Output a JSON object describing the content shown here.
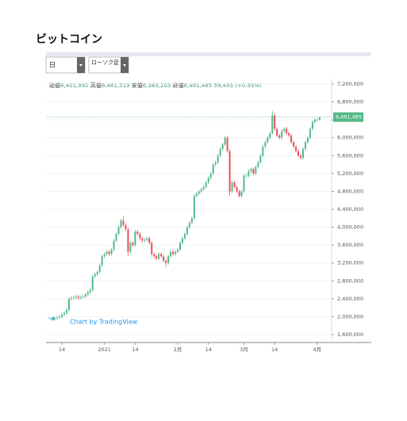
{
  "page_title": "ビットコイン",
  "toolbar": {
    "interval": "日",
    "chart_style": "ローソク足"
  },
  "info": {
    "open_label": "始値",
    "open": "6,401,992",
    "high_label": "高値",
    "high": "6,461,519",
    "low_label": "安値",
    "low": "6,383,203",
    "close_label": "終値",
    "close": "6,461,485",
    "change": "59,493 (+0.93%)"
  },
  "watermark": "Chart by TradingView",
  "chart_data": {
    "type": "candlestick",
    "categories": [
      null,
      null,
      null,
      null,
      "14",
      null,
      null,
      null,
      null,
      null,
      null,
      null,
      null,
      null,
      null,
      null,
      null,
      null,
      null,
      null,
      null,
      null,
      "2021",
      null,
      null,
      null,
      null,
      null,
      null,
      null,
      null,
      null,
      null,
      null,
      null,
      "14",
      null,
      null,
      null,
      null,
      null,
      null,
      null,
      null,
      null,
      null,
      null,
      null,
      null,
      null,
      null,
      null,
      null,
      "2月",
      null,
      null,
      null,
      null,
      null,
      null,
      null,
      null,
      null,
      null,
      null,
      null,
      "14",
      null,
      null,
      null,
      null,
      null,
      null,
      null,
      null,
      null,
      null,
      null,
      null,
      null,
      null,
      "3月",
      null,
      null,
      null,
      null,
      null,
      null,
      null,
      null,
      null,
      null,
      null,
      null,
      "14",
      null,
      null,
      null,
      null,
      null,
      null,
      null,
      null,
      null,
      null,
      null,
      null,
      null,
      null,
      null,
      null,
      null,
      "4月",
      null
    ],
    "open": [
      1930000,
      1950000,
      1960000,
      1980000,
      2000000,
      2050000,
      2080000,
      2150000,
      2400000,
      2420000,
      2430000,
      2450000,
      2420000,
      2440000,
      2450000,
      2500000,
      2550000,
      2600000,
      2900000,
      2950000,
      3000000,
      3150000,
      3350000,
      3400000,
      3450000,
      3400000,
      3500000,
      3700000,
      3850000,
      4000000,
      4150000,
      4050000,
      3950000,
      3450000,
      3650000,
      3600000,
      3900000,
      3850000,
      3750000,
      3700000,
      3720000,
      3750000,
      3650000,
      3400000,
      3350000,
      3300000,
      3400000,
      3350000,
      3250000,
      3200000,
      3350000,
      3450000,
      3400000,
      3450000,
      3500000,
      3650000,
      3750000,
      3850000,
      4000000,
      4100000,
      4200000,
      4700000,
      4750000,
      4800000,
      4850000,
      4900000,
      5000000,
      5100000,
      5200000,
      5400000,
      5450000,
      5600000,
      5750000,
      5850000,
      6000000,
      5700000,
      4800000,
      5000000,
      4900000,
      4800000,
      4700000,
      4800000,
      5150000,
      5150000,
      5250000,
      5300000,
      5200000,
      5350000,
      5450000,
      5600000,
      5800000,
      5900000,
      6000000,
      6100000,
      6500000,
      6200000,
      6050000,
      6000000,
      6150000,
      6200000,
      6100000,
      6050000,
      5900000,
      5800000,
      5700000,
      5600000,
      5550000,
      5750000,
      5900000,
      6000000,
      6200000,
      6350000,
      6400000,
      6401992
    ],
    "high": [
      1990000,
      2000000,
      2020000,
      2040000,
      2090000,
      2120000,
      2190000,
      2440000,
      2460000,
      2470000,
      2490000,
      2490000,
      2480000,
      2490000,
      2540000,
      2590000,
      2640000,
      2940000,
      2990000,
      3040000,
      3190000,
      3390000,
      3440000,
      3490000,
      3490000,
      3540000,
      3740000,
      3890000,
      4040000,
      4190000,
      4250000,
      4090000,
      3990000,
      3690000,
      3690000,
      3940000,
      3940000,
      3890000,
      3790000,
      3760000,
      3790000,
      3790000,
      3690000,
      3440000,
      3390000,
      3440000,
      3440000,
      3390000,
      3290000,
      3390000,
      3490000,
      3490000,
      3490000,
      3540000,
      3690000,
      3790000,
      3890000,
      4040000,
      4140000,
      4240000,
      4740000,
      4790000,
      4840000,
      4890000,
      4940000,
      5040000,
      5140000,
      5240000,
      5440000,
      5490000,
      5640000,
      5790000,
      5890000,
      6040000,
      6040000,
      5740000,
      5040000,
      5040000,
      4940000,
      4840000,
      4840000,
      5190000,
      5190000,
      5290000,
      5340000,
      5340000,
      5390000,
      5490000,
      5640000,
      5840000,
      5940000,
      6040000,
      6140000,
      6600000,
      6540000,
      6240000,
      6090000,
      6190000,
      6240000,
      6240000,
      6140000,
      6090000,
      5940000,
      5840000,
      5740000,
      5640000,
      5790000,
      5940000,
      6040000,
      6240000,
      6390000,
      6440000,
      6440000,
      6461519
    ],
    "low": [
      1890000,
      1910000,
      1920000,
      1940000,
      1960000,
      2010000,
      2040000,
      2110000,
      2360000,
      2380000,
      2390000,
      2380000,
      2380000,
      2400000,
      2410000,
      2460000,
      2510000,
      2560000,
      2860000,
      2910000,
      2960000,
      3110000,
      3310000,
      3360000,
      3360000,
      3360000,
      3460000,
      3660000,
      3810000,
      3960000,
      4010000,
      3910000,
      3350000,
      3410000,
      3560000,
      3560000,
      3810000,
      3710000,
      3660000,
      3660000,
      3680000,
      3610000,
      3360000,
      3310000,
      3260000,
      3260000,
      3310000,
      3210000,
      3100000,
      3160000,
      3310000,
      3360000,
      3360000,
      3410000,
      3460000,
      3610000,
      3710000,
      3810000,
      3960000,
      4060000,
      4160000,
      4660000,
      4710000,
      4760000,
      4810000,
      4860000,
      4960000,
      5060000,
      5160000,
      5360000,
      5410000,
      5560000,
      5710000,
      5810000,
      5660000,
      4700000,
      4760000,
      4860000,
      4760000,
      4660000,
      4660000,
      4760000,
      5110000,
      5110000,
      5210000,
      5160000,
      5160000,
      5310000,
      5410000,
      5560000,
      5760000,
      5860000,
      5960000,
      6060000,
      6160000,
      6010000,
      5960000,
      5960000,
      6110000,
      6060000,
      6010000,
      5860000,
      5760000,
      5660000,
      5560000,
      5510000,
      5510000,
      5710000,
      5860000,
      5960000,
      6160000,
      6310000,
      6360000,
      6383203
    ],
    "close": [
      1950000,
      1960000,
      1980000,
      2000000,
      2050000,
      2080000,
      2150000,
      2400000,
      2420000,
      2430000,
      2450000,
      2420000,
      2440000,
      2450000,
      2500000,
      2550000,
      2600000,
      2900000,
      2950000,
      3000000,
      3150000,
      3350000,
      3400000,
      3450000,
      3400000,
      3500000,
      3700000,
      3850000,
      4000000,
      4150000,
      4050000,
      3950000,
      3450000,
      3650000,
      3600000,
      3900000,
      3850000,
      3750000,
      3700000,
      3720000,
      3750000,
      3650000,
      3400000,
      3350000,
      3300000,
      3400000,
      3350000,
      3250000,
      3200000,
      3350000,
      3450000,
      3400000,
      3450000,
      3500000,
      3650000,
      3750000,
      3850000,
      4000000,
      4100000,
      4200000,
      4700000,
      4750000,
      4800000,
      4850000,
      4900000,
      5000000,
      5100000,
      5200000,
      5400000,
      5450000,
      5600000,
      5750000,
      5850000,
      6000000,
      5700000,
      4800000,
      5000000,
      4900000,
      4800000,
      4700000,
      4800000,
      5150000,
      5150000,
      5250000,
      5300000,
      5200000,
      5350000,
      5450000,
      5600000,
      5800000,
      5900000,
      6000000,
      6100000,
      6500000,
      6200000,
      6050000,
      6000000,
      6150000,
      6200000,
      6100000,
      6050000,
      5900000,
      5800000,
      5700000,
      5600000,
      5550000,
      5750000,
      5900000,
      6000000,
      6200000,
      6350000,
      6400000,
      6401992,
      6461485
    ],
    "up_color": "#53b987",
    "down_color": "#eb4d5c",
    "last_price": {
      "value": 6461485,
      "label": "6,461,485"
    },
    "ylim": [
      1422300,
      7306300
    ],
    "yticks": [
      {
        "value": 1600000,
        "label": "1,600,000"
      },
      {
        "value": 2000000,
        "label": "2,000,000"
      },
      {
        "value": 2400000,
        "label": "2,400,000"
      },
      {
        "value": 2800000,
        "label": "2,800,000"
      },
      {
        "value": 3200000,
        "label": "3,200,000"
      },
      {
        "value": 3600000,
        "label": "3,600,000"
      },
      {
        "value": 4000000,
        "label": "4,000,000"
      },
      {
        "value": 4400000,
        "label": "4,400,000"
      },
      {
        "value": 4800000,
        "label": "4,800,000"
      },
      {
        "value": 5200000,
        "label": "5,200,000"
      },
      {
        "value": 5600000,
        "label": "5,600,000"
      },
      {
        "value": 6000000,
        "label": "6,000,000"
      },
      {
        "value": 6400000,
        "label": "6,400,000"
      },
      {
        "value": 6800000,
        "label": "6,800,000"
      },
      {
        "value": 7200000,
        "label": "7,200,000"
      }
    ],
    "grid": true
  }
}
